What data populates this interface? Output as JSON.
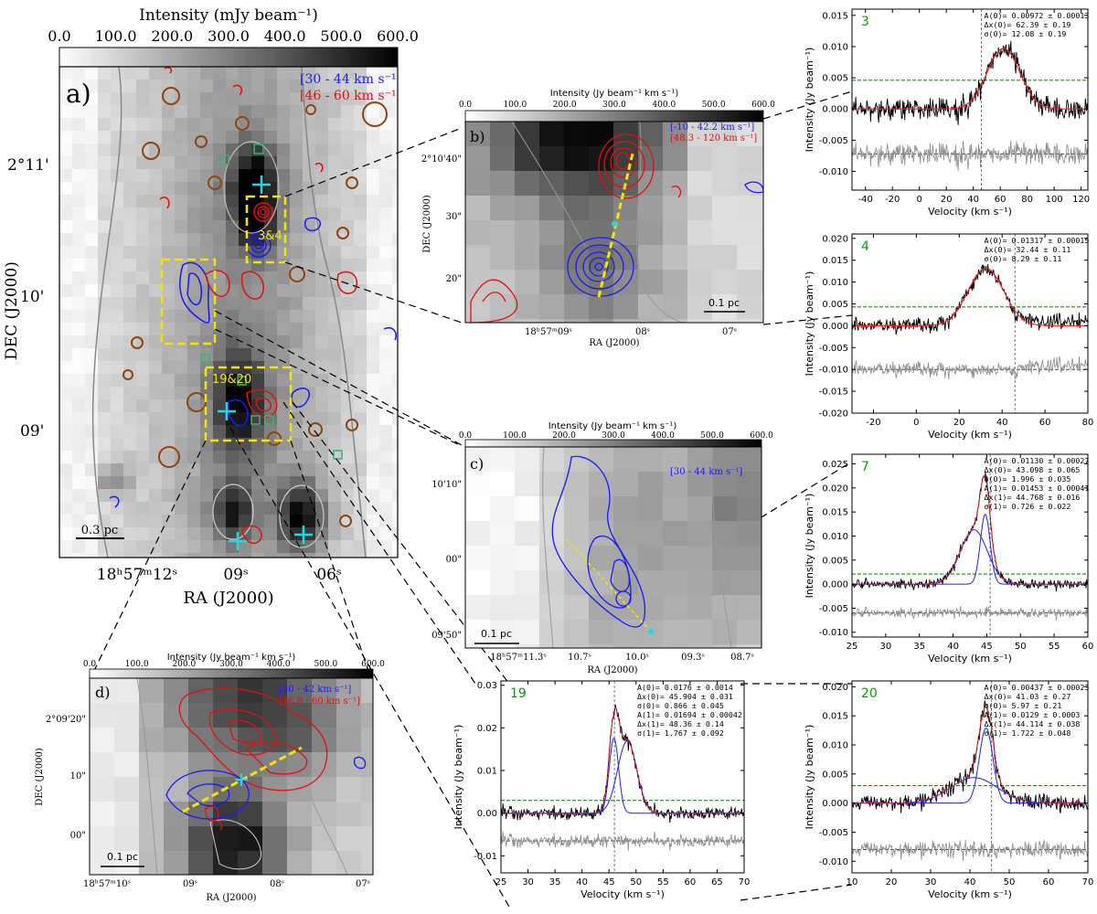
{
  "colors": {
    "blue_contour": "#1a1aff",
    "red_contour": "#e01010",
    "yellow_box": "#f2e600",
    "cyan_marker": "#20d8e8",
    "brown_circle": "#8b4513",
    "green_square": "#3cb371",
    "fit_red": "#ff2020",
    "fit_blue": "#1f1fff",
    "rms_green": "#159415",
    "residual_gray": "#8c8c8c"
  },
  "panel_a": {
    "label": "a)",
    "colorbar_title": "Intensity (mJy beam⁻¹)",
    "colorbar_ticks": [
      "0.0",
      "100.0",
      "200.0",
      "300.0",
      "400.0",
      "500.0",
      "600.0"
    ],
    "legend": [
      "[30 - 44 km s⁻¹]",
      "[46 - 60 km s⁻¹]"
    ],
    "yticks": [
      "2°11'",
      "10'",
      "09'"
    ],
    "xticks": [
      "18ʰ57ᵐ12ˢ",
      "09ˢ",
      "06ˢ"
    ],
    "xlabel": "RA (J2000)",
    "ylabel": "DEC (J2000)",
    "scalebar": "0.3 pc",
    "box_labels": [
      "3&4",
      "19&20"
    ]
  },
  "panel_b": {
    "label": "b)",
    "colorbar_title": "Intensity (Jy beam⁻¹ km s⁻¹)",
    "colorbar_ticks": [
      "0.0",
      "100.0",
      "200.0",
      "300.0",
      "400.0",
      "500.0",
      "600.0"
    ],
    "legend": [
      "[-10 - 42.2 km s⁻¹]",
      "[48.3 - 120 km s⁻¹]"
    ],
    "yticks": [
      "2°10'40\"",
      "30\"",
      "20\""
    ],
    "xticks": [
      "18ʰ57ᵐ09ˢ",
      "08ˢ",
      "07ˢ"
    ],
    "xlabel": "RA (J2000)",
    "ylabel": "DEC (J2000)",
    "scalebar": "0.1 pc"
  },
  "panel_c": {
    "label": "c)",
    "colorbar_title": "Intensity (Jy beam⁻¹ km s⁻¹)",
    "colorbar_ticks": [
      "0.0",
      "100.0",
      "200.0",
      "300.0",
      "400.0",
      "500.0",
      "600.0"
    ],
    "legend": [
      "[30 - 44 km s⁻¹]"
    ],
    "yticks": [
      "10'10\"",
      "00\"",
      "09'50\""
    ],
    "xticks": [
      "18ʰ57ᵐ11.3ˢ",
      "10.7ˢ",
      "10.0ˢ",
      "09.3ˢ",
      "08.7ˢ"
    ],
    "xlabel": "RA (J2000)",
    "scalebar": "0.1 pc"
  },
  "panel_d": {
    "label": "d)",
    "colorbar_title": "Intensity (Jy beam⁻¹ km s⁻¹)",
    "colorbar_ticks": [
      "0.0",
      "100.0",
      "200.0",
      "300.0",
      "400.0",
      "500.0",
      "600.0"
    ],
    "legend": [
      "[20 - 42 km s⁻¹]",
      "[46.9 - 60 km s⁻¹]"
    ],
    "yticks": [
      "2°09'20\"",
      "10\"",
      "00\""
    ],
    "xticks": [
      "18ʰ57ᵐ10ˢ",
      "09ˢ",
      "08ˢ",
      "07ˢ"
    ],
    "xlabel": "RA (J2000)",
    "ylabel": "DEC (J2000)",
    "scalebar": "0.1 pc"
  },
  "chart_data": [
    {
      "type": "line",
      "id": "3",
      "xlabel": "Velocity (km s⁻¹)",
      "ylabel": "Intensity (Jy beam⁻¹)",
      "xlim": [
        -50,
        125
      ],
      "ylim": [
        -0.013,
        0.016
      ],
      "xticks": [
        -40,
        -20,
        0,
        20,
        40,
        60,
        80,
        100,
        120
      ],
      "yticks": [
        "0.015",
        "0.010",
        "0.005",
        "0.000",
        "-0.005",
        "-0.010"
      ],
      "ytick_values": [
        0.015,
        0.01,
        0.005,
        0.0,
        -0.005,
        -0.01
      ],
      "rms": 0.0046,
      "residual_offset": -0.0072,
      "vline": 46,
      "noise": 0.00085,
      "components": [
        {
          "A": 0.00972,
          "dx": 62.39,
          "sigma": 12.08
        }
      ],
      "params": [
        "A(0)= 0.00972 ±  0.00013",
        "Δx(0)=  62.39 ±   0.19",
        "σ(0)=  12.08 ±   0.19"
      ]
    },
    {
      "type": "line",
      "id": "4",
      "xlabel": "Velocity (km s⁻¹)",
      "ylabel": "Intensity (Jy beam⁻¹)",
      "xlim": [
        -30,
        80
      ],
      "ylim": [
        -0.02,
        0.021
      ],
      "xticks": [
        -20,
        0,
        20,
        40,
        60,
        80
      ],
      "yticks": [
        "0.020",
        "0.015",
        "0.010",
        "0.005",
        "0.000",
        "-0.005",
        "-0.010",
        "-0.015",
        "-0.020"
      ],
      "ytick_values": [
        0.02,
        0.015,
        0.01,
        0.005,
        0.0,
        -0.005,
        -0.01,
        -0.015,
        -0.02
      ],
      "rms": 0.0043,
      "residual_offset": -0.01,
      "vline": 46,
      "noise": 0.0008,
      "components": [
        {
          "A": 0.01317,
          "dx": 32.44,
          "sigma": 8.29
        }
      ],
      "params": [
        "A(0)= 0.01317 ±  0.00015",
        "Δx(0)=  32.44 ±   0.11",
        "σ(0)=   8.29 ±   0.11"
      ]
    },
    {
      "type": "line",
      "id": "7",
      "xlabel": "Velocity (km s⁻¹)",
      "ylabel": "Intensity (Jy beam⁻¹)",
      "xlim": [
        25,
        60
      ],
      "ylim": [
        -0.011,
        0.027
      ],
      "xticks": [
        25,
        30,
        35,
        40,
        45,
        50,
        55,
        60
      ],
      "yticks": [
        "0.025",
        "0.020",
        "0.015",
        "0.010",
        "0.005",
        "0.000",
        "-0.005",
        "-0.010"
      ],
      "ytick_values": [
        0.025,
        0.02,
        0.015,
        0.01,
        0.005,
        0.0,
        -0.005,
        -0.01
      ],
      "rms": 0.0021,
      "residual_offset": -0.006,
      "vline": 45.5,
      "noise": 0.0005,
      "components": [
        {
          "A": 0.0113,
          "dx": 43.098,
          "sigma": 1.996
        },
        {
          "A": 0.01453,
          "dx": 44.768,
          "sigma": 0.726
        }
      ],
      "params": [
        "A(0)= 0.01130 ±  0.00027",
        "Δx(0)= 43.098 ±  0.065",
        "σ(0)=  1.996 ±  0.035",
        "A(1)= 0.01453 ±  0.00041",
        "Δx(1)= 44.768 ±  0.016",
        "σ(1)=  0.726 ±  0.022"
      ]
    },
    {
      "type": "line",
      "id": "19",
      "xlabel": "Velocity (km s⁻¹)",
      "ylabel": "Intensity (Jy beam⁻¹)",
      "xlim": [
        25,
        70
      ],
      "ylim": [
        -0.014,
        0.031
      ],
      "xticks": [
        25,
        30,
        35,
        40,
        45,
        50,
        55,
        60,
        65,
        70
      ],
      "yticks": [
        "0.03",
        "0.02",
        "0.01",
        "0.00",
        "-0.01"
      ],
      "ytick_values": [
        0.03,
        0.02,
        0.01,
        0.0,
        -0.01
      ],
      "rms": 0.003,
      "residual_offset": -0.0065,
      "vline": 46,
      "noise": 0.0007,
      "components": [
        {
          "A": 0.0176,
          "dx": 45.904,
          "sigma": 0.866
        },
        {
          "A": 0.01694,
          "dx": 48.36,
          "sigma": 1.767
        }
      ],
      "params": [
        "A(0)= 0.0176 ±  0.0014",
        "Δx(0)= 45.904 ±  0.031",
        "σ(0)=  0.866 ±  0.045",
        "A(1)= 0.01694 ±  0.00042",
        "Δx(1)=  48.36 ±   0.14",
        "σ(1)=  1.767 ±  0.092"
      ]
    },
    {
      "type": "line",
      "id": "20",
      "xlabel": "Velocity (km s⁻¹)",
      "ylabel": "Intensity (Jy beam⁻¹)",
      "xlim": [
        10,
        70
      ],
      "ylim": [
        -0.012,
        0.021
      ],
      "xticks": [
        10,
        20,
        30,
        40,
        50,
        60,
        70
      ],
      "yticks": [
        "0.020",
        "0.015",
        "0.010",
        "0.005",
        "0.000",
        "-0.005",
        "-0.010"
      ],
      "ytick_values": [
        0.02,
        0.015,
        0.01,
        0.005,
        0.0,
        -0.005,
        -0.01
      ],
      "rms": 0.003,
      "residual_offset": -0.008,
      "vline": 45.5,
      "noise": 0.0007,
      "components": [
        {
          "A": 0.00437,
          "dx": 41.03,
          "sigma": 5.97
        },
        {
          "A": 0.0129,
          "dx": 44.114,
          "sigma": 1.722
        }
      ],
      "params": [
        "A(0)= 0.00437 ±  0.00023",
        "Δx(0)=  41.03 ±   0.27",
        "σ(0)=   5.97 ±   0.21",
        "A(1)= 0.0129 ±  0.0003",
        "Δx(1)= 44.114 ±  0.038",
        "σ(1)=  1.722 ±  0.048"
      ]
    }
  ]
}
